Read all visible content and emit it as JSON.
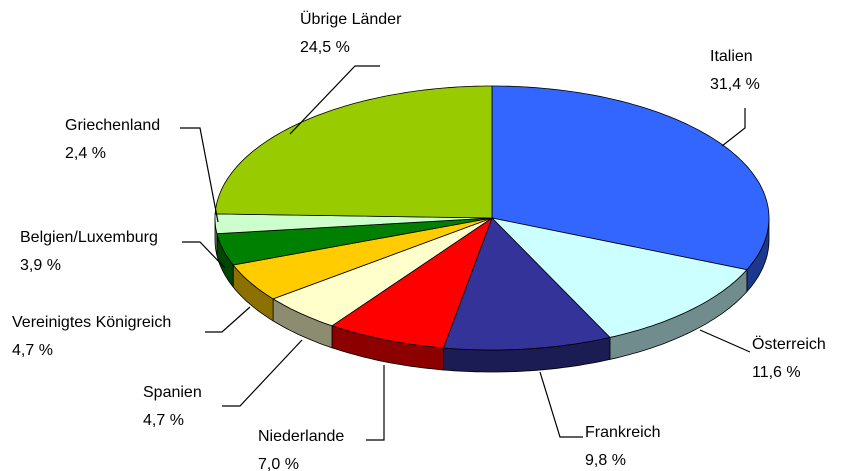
{
  "chart_data": {
    "type": "pie3d",
    "categories": [
      "Italien",
      "Österreich",
      "Frankreich",
      "Niederlande",
      "Spanien",
      "Vereinigtes Königreich",
      "Belgien/Luxemburg",
      "Griechenland",
      "Übrige Länder"
    ],
    "values": [
      31.4,
      11.6,
      9.8,
      7.0,
      4.7,
      4.7,
      3.9,
      2.4,
      24.5
    ],
    "value_labels": [
      "31,4 %",
      "11,6 %",
      "9,8 %",
      "7,0 %",
      "4,7 %",
      "4,7 %",
      "3,9 %",
      "2,4 %",
      "24,5 %"
    ],
    "colors": [
      "#3366ff",
      "#ccffff",
      "#333399",
      "#ff0000",
      "#ffffcc",
      "#ffcc00",
      "#008000",
      "#ccffcc",
      "#99cc00"
    ]
  }
}
